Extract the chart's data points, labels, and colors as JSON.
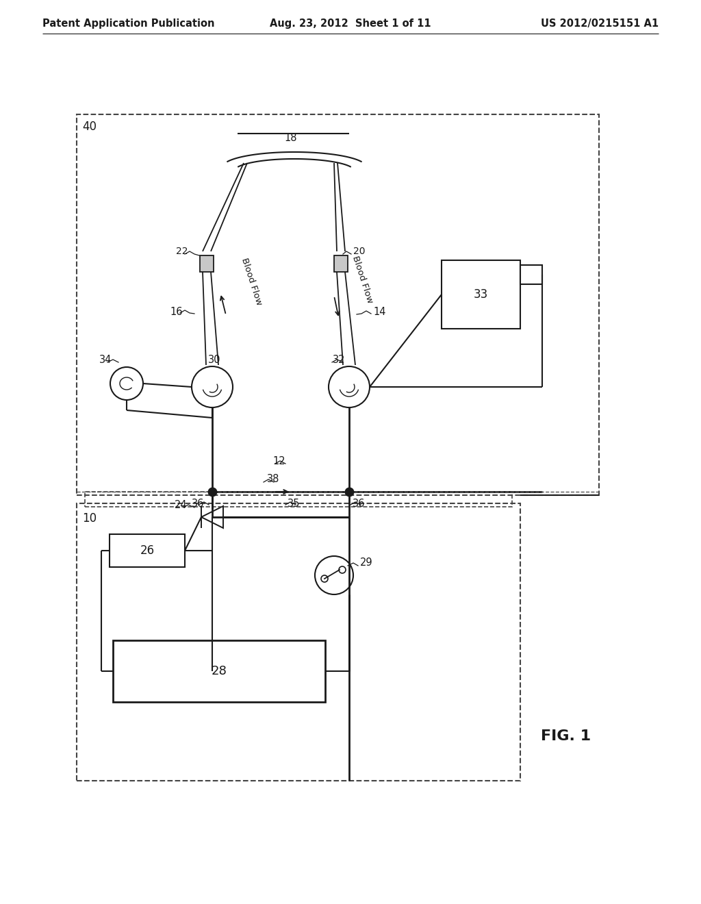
{
  "header_left": "Patent Application Publication",
  "header_center": "Aug. 23, 2012  Sheet 1 of 11",
  "header_right": "US 2012/0215151 A1",
  "figure_label": "FIG. 1",
  "bg_color": "#ffffff",
  "line_color": "#1a1a1a",
  "gray_color": "#888888"
}
